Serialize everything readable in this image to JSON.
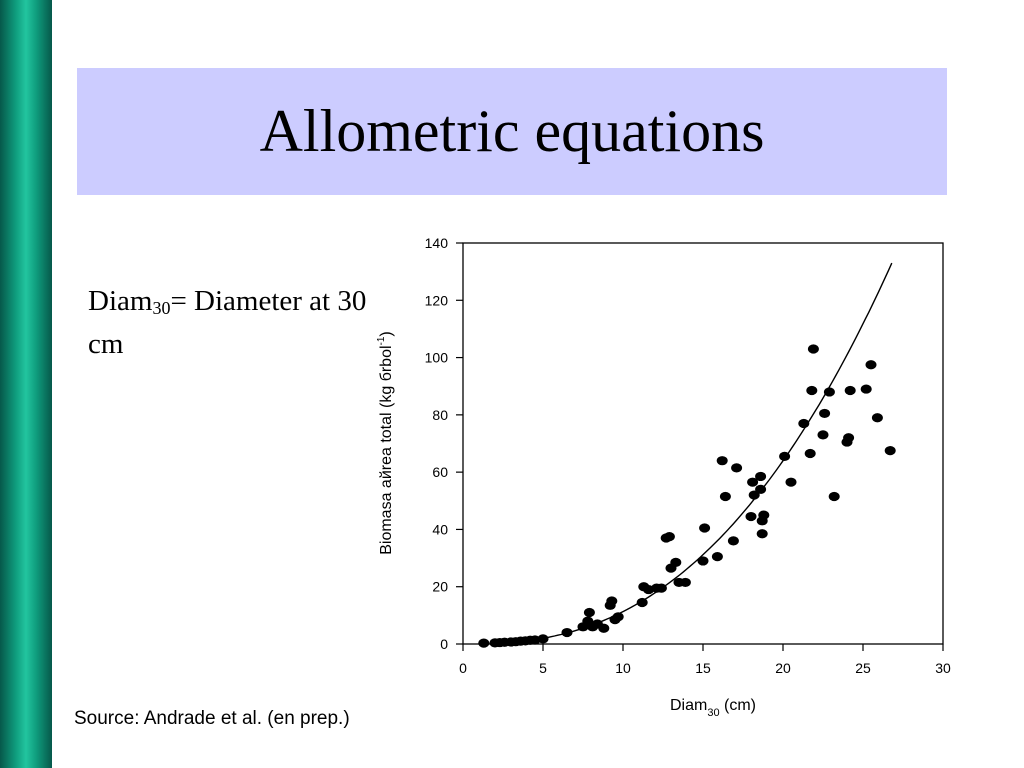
{
  "slide": {
    "title": "Allometric equations",
    "definition": {
      "prefix": "Diam",
      "subscript": "30",
      "rest": "= Diameter at 30 cm"
    },
    "source": "Source: Andrade et al. (en prep.)"
  },
  "colors": {
    "title_background": "#ccccff",
    "side_bar": "#0f9c7d",
    "points": "#000000"
  },
  "chart_data": {
    "type": "scatter",
    "xlabel": {
      "main": "Diam",
      "sub": "30",
      "tail": " (cm)"
    },
    "ylabel": {
      "main": "Biomasa aйrea total (kg бrbol",
      "sup": "-1",
      "tail": ")"
    },
    "xlim": [
      0,
      30
    ],
    "ylim": [
      0,
      140
    ],
    "xticks": [
      0,
      5,
      10,
      15,
      20,
      25,
      30
    ],
    "yticks": [
      0,
      20,
      40,
      60,
      80,
      100,
      120,
      140
    ],
    "grid": false,
    "fitted_curve": {
      "x_range": [
        2.0,
        26.8
      ],
      "y_at_end": 133
    },
    "points": [
      [
        1.3,
        0.3
      ],
      [
        2.0,
        0.4
      ],
      [
        2.3,
        0.5
      ],
      [
        2.6,
        0.6
      ],
      [
        3.0,
        0.7
      ],
      [
        3.3,
        0.8
      ],
      [
        3.6,
        1.0
      ],
      [
        3.9,
        1.1
      ],
      [
        4.2,
        1.3
      ],
      [
        4.5,
        1.4
      ],
      [
        5.0,
        1.8
      ],
      [
        6.5,
        4.0
      ],
      [
        7.5,
        6.0
      ],
      [
        7.8,
        8.0
      ],
      [
        7.9,
        11.0
      ],
      [
        8.1,
        6.0
      ],
      [
        8.4,
        7.0
      ],
      [
        8.8,
        5.5
      ],
      [
        9.2,
        13.5
      ],
      [
        9.3,
        15.0
      ],
      [
        9.5,
        8.5
      ],
      [
        9.7,
        9.5
      ],
      [
        11.2,
        14.5
      ],
      [
        11.3,
        20.0
      ],
      [
        11.6,
        19.0
      ],
      [
        12.1,
        19.5
      ],
      [
        12.4,
        19.5
      ],
      [
        12.7,
        37.0
      ],
      [
        12.9,
        37.5
      ],
      [
        13.0,
        26.5
      ],
      [
        13.3,
        28.5
      ],
      [
        13.5,
        21.5
      ],
      [
        13.9,
        21.5
      ],
      [
        15.0,
        29.0
      ],
      [
        15.1,
        40.5
      ],
      [
        15.9,
        30.5
      ],
      [
        16.2,
        64.0
      ],
      [
        16.4,
        51.5
      ],
      [
        16.9,
        36.0
      ],
      [
        17.1,
        61.5
      ],
      [
        18.0,
        44.5
      ],
      [
        18.1,
        56.5
      ],
      [
        18.2,
        52.0
      ],
      [
        18.6,
        58.5
      ],
      [
        18.6,
        54.0
      ],
      [
        18.7,
        43.0
      ],
      [
        18.7,
        38.5
      ],
      [
        18.8,
        45.0
      ],
      [
        20.1,
        65.5
      ],
      [
        20.5,
        56.5
      ],
      [
        21.3,
        77.0
      ],
      [
        21.7,
        66.5
      ],
      [
        21.8,
        88.5
      ],
      [
        21.9,
        103.0
      ],
      [
        22.5,
        73.0
      ],
      [
        22.6,
        80.5
      ],
      [
        22.9,
        88.0
      ],
      [
        23.2,
        51.5
      ],
      [
        24.0,
        70.5
      ],
      [
        24.1,
        72.0
      ],
      [
        24.2,
        88.5
      ],
      [
        25.2,
        89.0
      ],
      [
        25.5,
        97.5
      ],
      [
        25.9,
        79.0
      ],
      [
        26.7,
        67.5
      ]
    ]
  }
}
